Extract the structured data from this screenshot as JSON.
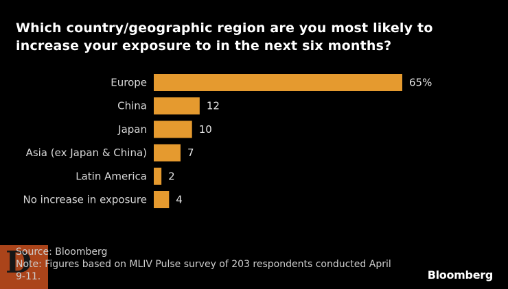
{
  "chart_data": {
    "type": "bar",
    "orientation": "horizontal",
    "title": "Which country/geographic region are you most likely to increase your exposure to in the next six months?",
    "categories": [
      "Europe",
      "China",
      "Japan",
      "Asia (ex Japan & China)",
      "Latin America",
      "No increase in exposure"
    ],
    "values": [
      65,
      12,
      10,
      7,
      2,
      4
    ],
    "data_labels": [
      "65%",
      "12",
      "10",
      "7",
      "2",
      "4"
    ],
    "xlim": [
      0,
      65
    ],
    "grid": false,
    "legend": "none",
    "bar_color": "#e59a2f"
  },
  "footer": {
    "source": "Source: Bloomberg",
    "note": "Note: Figures based on MLIV Pulse survey of 203 respondents conducted April 9-11."
  },
  "brand": "Bloomberg",
  "watermark_logo": "D",
  "colors": {
    "background": "#000000",
    "bar": "#e59a2f",
    "text": "#ffffff"
  }
}
